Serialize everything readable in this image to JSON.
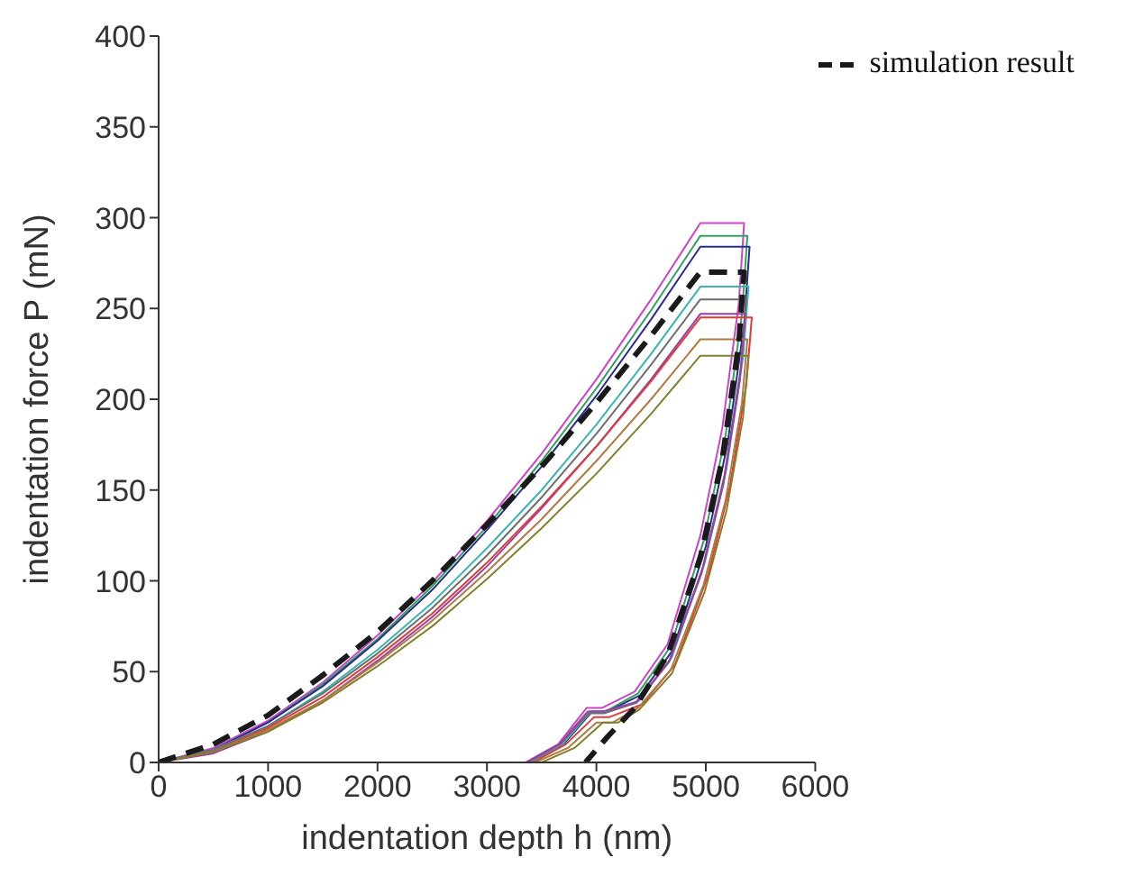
{
  "chart_data": {
    "type": "line",
    "xlabel": "indentation depth h (nm)",
    "ylabel": "indentation force P (mN)",
    "xlim": [
      0,
      6000
    ],
    "xticks": [
      0,
      1000,
      2000,
      3000,
      4000,
      5000,
      6000
    ],
    "ylim": [
      0,
      400
    ],
    "yticks": [
      0,
      50,
      100,
      150,
      200,
      250,
      300,
      350,
      400
    ],
    "grid": false,
    "legend": "top right",
    "marker": "none",
    "line_style": "solid",
    "series": [
      {
        "color": "#cc44cc",
        "x": [
          0,
          500,
          1000,
          1500,
          2000,
          2500,
          3000,
          3500,
          4000,
          4500,
          4950,
          5350,
          5300,
          5150,
          4950,
          4650,
          4350,
          4050,
          3910,
          3650,
          3350
        ],
        "values": [
          0,
          8,
          23,
          44,
          70,
          99,
          133,
          170,
          211,
          255,
          297,
          297,
          252,
          184,
          125,
          65,
          39,
          30,
          30,
          10,
          0
        ]
      },
      {
        "color": "#33a060",
        "x": [
          0,
          500,
          1000,
          1500,
          2000,
          2500,
          3000,
          3500,
          4000,
          4500,
          4950,
          5380,
          5330,
          5180,
          4980,
          4680,
          4380,
          4080,
          3940,
          3680,
          3380
        ],
        "values": [
          0,
          7,
          22,
          43,
          68,
          97,
          130,
          166,
          206,
          249,
          290,
          290,
          247,
          180,
          122,
          64,
          38,
          28,
          28,
          10,
          0
        ]
      },
      {
        "color": "#2b2b90",
        "x": [
          0,
          500,
          1000,
          1500,
          2000,
          2500,
          3000,
          3500,
          4000,
          4500,
          4950,
          5400,
          5350,
          5200,
          5000,
          4700,
          4400,
          4100,
          3960,
          3700,
          3400
        ],
        "values": [
          0,
          7,
          22,
          42,
          67,
          95,
          128,
          163,
          202,
          244,
          284,
          284,
          241,
          176,
          119,
          62,
          37,
          28,
          28,
          10,
          0
        ]
      },
      {
        "color": "#3cb4b4",
        "x": [
          0,
          500,
          1000,
          1500,
          2000,
          2500,
          3000,
          3500,
          4000,
          4500,
          4950,
          5390,
          5340,
          5190,
          4990,
          4690,
          4390,
          4090,
          3950,
          3690,
          3390
        ],
        "values": [
          0,
          7,
          20,
          39,
          62,
          88,
          118,
          150,
          186,
          225,
          262,
          262,
          223,
          162,
          110,
          58,
          34,
          28,
          28,
          10,
          0
        ]
      },
      {
        "color": "#6e6e6e",
        "x": [
          0,
          500,
          1000,
          1500,
          2000,
          2500,
          3000,
          3500,
          4000,
          4500,
          4950,
          5370,
          5320,
          5170,
          4970,
          4670,
          4370,
          4070,
          3930,
          3670,
          3370
        ],
        "values": [
          0,
          7,
          20,
          38,
          60,
          85,
          114,
          146,
          181,
          219,
          255,
          255,
          217,
          158,
          107,
          56,
          33,
          27,
          27,
          10,
          0
        ]
      },
      {
        "color": "#9b3fa0",
        "x": [
          0,
          500,
          1000,
          1500,
          2000,
          2500,
          3000,
          3500,
          4000,
          4500,
          4950,
          5360,
          5310,
          5160,
          4960,
          4660,
          4360,
          4060,
          3920,
          3660,
          3360
        ],
        "values": [
          0,
          5,
          17,
          34,
          56,
          80,
          108,
          140,
          174,
          211,
          247,
          247,
          210,
          153,
          104,
          55,
          33,
          28,
          28,
          10,
          0
        ]
      },
      {
        "color": "#e03a3a",
        "x": [
          0,
          500,
          1000,
          1500,
          2000,
          2500,
          3000,
          3500,
          4000,
          4500,
          4950,
          5420,
          5370,
          5220,
          5020,
          4720,
          4420,
          4120,
          3980,
          3720,
          3420
        ],
        "values": [
          0,
          6,
          19,
          36,
          58,
          82,
          110,
          141,
          174,
          210,
          245,
          245,
          208,
          152,
          103,
          54,
          32,
          25,
          25,
          10,
          0
        ]
      },
      {
        "color": "#b07a40",
        "x": [
          0,
          500,
          1000,
          1500,
          2000,
          2500,
          3000,
          3500,
          4000,
          4500,
          4950,
          5380,
          5330,
          5180,
          4980,
          4680,
          4380,
          4150,
          4000,
          3740,
          3440
        ],
        "values": [
          0,
          6,
          18,
          34,
          55,
          78,
          105,
          134,
          166,
          200,
          233,
          233,
          198,
          144,
          98,
          51,
          30,
          22,
          22,
          8,
          0
        ]
      },
      {
        "color": "#808030",
        "x": [
          0,
          500,
          1000,
          1500,
          2000,
          2500,
          3000,
          3500,
          4000,
          4500,
          4950,
          5390,
          5340,
          5190,
          4990,
          4690,
          4390,
          4200,
          4060,
          3800,
          3500
        ],
        "values": [
          0,
          6,
          17,
          33,
          53,
          75,
          101,
          129,
          159,
          192,
          224,
          224,
          190,
          139,
          94,
          49,
          29,
          22,
          22,
          8,
          0
        ]
      },
      {
        "name": "simulation result",
        "color": "#1a1a1a",
        "line_style": "dashed",
        "x": [
          0,
          500,
          1000,
          1500,
          2000,
          2500,
          3000,
          3500,
          4000,
          4500,
          4950,
          5350,
          5300,
          5150,
          4950,
          4650,
          4350,
          4100,
          3900
        ],
        "values": [
          0,
          10,
          26,
          48,
          72,
          100,
          131,
          163,
          198,
          235,
          270,
          270,
          230,
          167,
          113,
          59,
          30,
          14,
          0
        ]
      }
    ]
  }
}
